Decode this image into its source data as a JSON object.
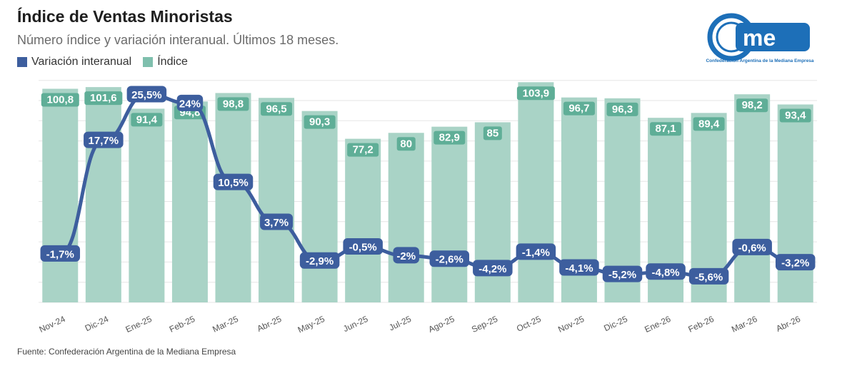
{
  "header": {
    "title": "Índice de Ventas Minoristas",
    "subtitle": "Número índice y variación interanual. Últimos 18 meses."
  },
  "legend": [
    {
      "label": "Variación interanual",
      "color": "#3d5e9e"
    },
    {
      "label": "Índice",
      "color": "#7fbfad"
    }
  ],
  "logo": {
    "text": "Confederación Argentina de la Mediana Empresa",
    "icon": "came-logo"
  },
  "source": "Fuente: Confederación Argentina de la Mediana Empresa",
  "colors": {
    "bar": "#a9d3c6",
    "bar_label_bg": "#5fae97",
    "line": "#3d5e9e",
    "grid": "#e6e6e6"
  },
  "chart_data": {
    "type": "bar",
    "categories": [
      "Nov-24",
      "Dic-24",
      "Ene-25",
      "Feb-25",
      "Mar-25",
      "Abr-25",
      "May-25",
      "Jun-25",
      "Jul-25",
      "Ago-25",
      "Sep-25",
      "Oct-25",
      "Nov-25",
      "Dic-25",
      "Ene-26",
      "Feb-26",
      "Mar-26",
      "Abr-26"
    ],
    "series": [
      {
        "name": "Índice",
        "type": "bar",
        "values": [
          100.8,
          101.6,
          91.4,
          94.8,
          98.8,
          96.5,
          90.3,
          77.2,
          80,
          82.9,
          85,
          103.9,
          96.7,
          96.3,
          87.1,
          89.4,
          98.2,
          93.4
        ],
        "labels": [
          "100,8",
          "101,6",
          "91,4",
          "94,8",
          "98,8",
          "96,5",
          "90,3",
          "77,2",
          "80",
          "82,9",
          "85",
          "103,9",
          "96,7",
          "96,3",
          "87,1",
          "89,4",
          "98,2",
          "93,4"
        ]
      },
      {
        "name": "Variación interanual",
        "type": "line",
        "values": [
          -1.7,
          17.7,
          25.5,
          24,
          10.5,
          3.7,
          -2.9,
          -0.5,
          -2,
          -2.6,
          -4.2,
          -1.4,
          -4.1,
          -5.2,
          -4.8,
          -5.6,
          -0.6,
          -3.2
        ],
        "labels": [
          "-1,7%",
          "17,7%",
          "25,5%",
          "24%",
          "10,5%",
          "3,7%",
          "-2,9%",
          "-0,5%",
          "-2%",
          "-2,6%",
          "-4,2%",
          "-1,4%",
          "-4,1%",
          "-5,2%",
          "-4,8%",
          "-5,6%",
          "-0,6%",
          "-3,2%"
        ]
      }
    ],
    "ylim": [
      0,
      105
    ],
    "ylim_secondary": [
      -10,
      28
    ],
    "grid": true,
    "legend_position": "top-left"
  }
}
